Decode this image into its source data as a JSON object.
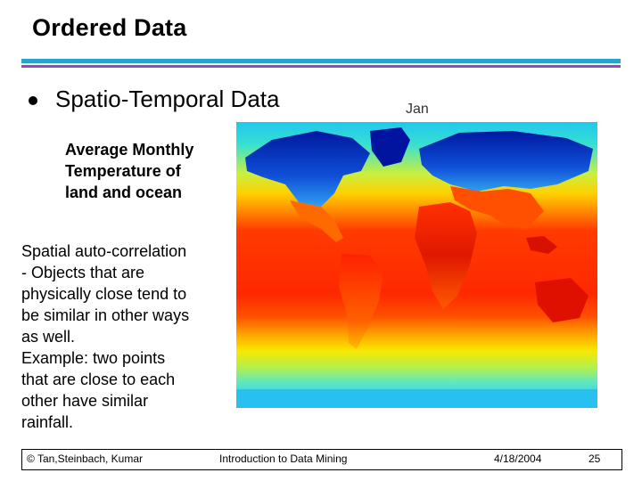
{
  "slide": {
    "title": "Ordered Data",
    "bullet": "Spatio-Temporal Data",
    "map_label": "Jan",
    "subtitle_lines": [
      "Average Monthly",
      "Temperature of",
      "land and ocean"
    ],
    "body_lines": [
      "Spatial auto-correlation",
      "- Objects that are",
      "physically close tend to",
      "be similar in other ways",
      "as well.",
      "Example: two points",
      "that are close to each",
      "other have similar",
      "rainfall."
    ]
  },
  "footer": {
    "authors": "© Tan,Steinbach, Kumar",
    "course": "Introduction to Data Mining",
    "date": "4/18/2004",
    "page": "25"
  },
  "colors": {
    "rule_top": "#2aa3c8",
    "rule_bottom": "#8a4fb8"
  }
}
